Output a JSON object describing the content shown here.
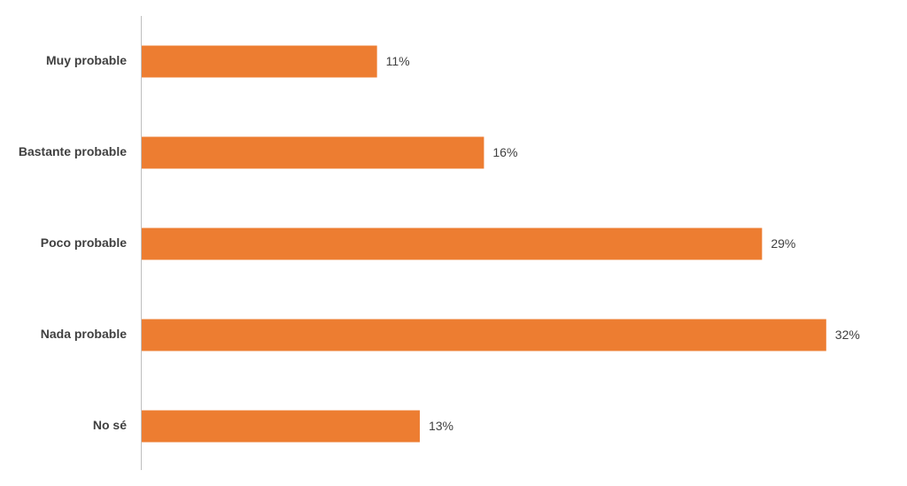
{
  "chart_data": {
    "type": "bar",
    "orientation": "horizontal",
    "categories": [
      "Muy probable",
      "Bastante probable",
      "Poco probable",
      "Nada probable",
      "No sé"
    ],
    "values": [
      11,
      16,
      29,
      32,
      13
    ],
    "value_labels": [
      "11%",
      "16%",
      "29%",
      "32%",
      "13%"
    ],
    "color": "#ED7D31"
  }
}
